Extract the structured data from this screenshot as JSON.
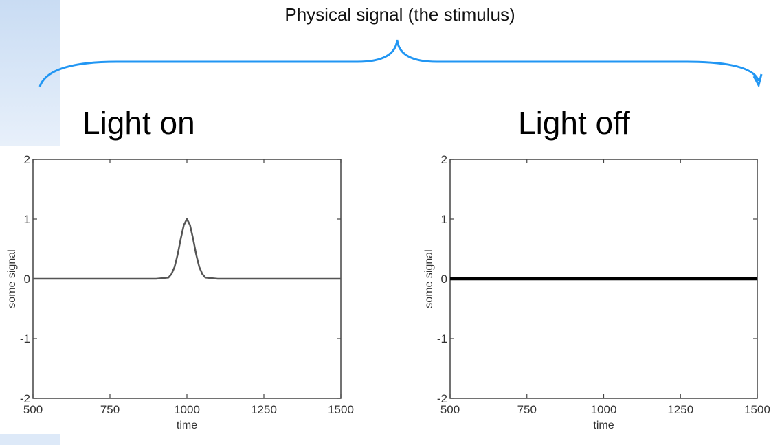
{
  "header": {
    "title": "Physical signal (the stimulus)"
  },
  "colors": {
    "brace": "#2196f3",
    "axis": "#444444",
    "series_left": "#555555",
    "series_right": "#000000"
  },
  "chart_data": [
    {
      "type": "line",
      "panel_title": "Light on",
      "xlabel": "time",
      "ylabel": "some signal",
      "xlim": [
        500,
        1500
      ],
      "ylim": [
        -2,
        2
      ],
      "xticks": [
        500,
        750,
        1000,
        1250,
        1500
      ],
      "yticks": [
        -2,
        -1,
        0,
        1,
        2
      ],
      "series": [
        {
          "x": [
            500,
            600,
            700,
            800,
            900,
            940,
            950,
            960,
            970,
            980,
            990,
            1000,
            1010,
            1020,
            1030,
            1040,
            1050,
            1060,
            1100,
            1200,
            1300,
            1400,
            1500
          ],
          "y": [
            0,
            0,
            0,
            0,
            0,
            0.02,
            0.08,
            0.2,
            0.41,
            0.67,
            0.9,
            1.0,
            0.9,
            0.67,
            0.41,
            0.2,
            0.08,
            0.02,
            0,
            0,
            0,
            0,
            0
          ]
        }
      ]
    },
    {
      "type": "line",
      "panel_title": "Light off",
      "xlabel": "time",
      "ylabel": "some signal",
      "xlim": [
        500,
        1500
      ],
      "ylim": [
        -2,
        2
      ],
      "xticks": [
        500,
        750,
        1000,
        1250,
        1500
      ],
      "yticks": [
        -2,
        -1,
        0,
        1,
        2
      ],
      "series": [
        {
          "x": [
            500,
            1500
          ],
          "y": [
            0,
            0
          ]
        }
      ]
    }
  ]
}
